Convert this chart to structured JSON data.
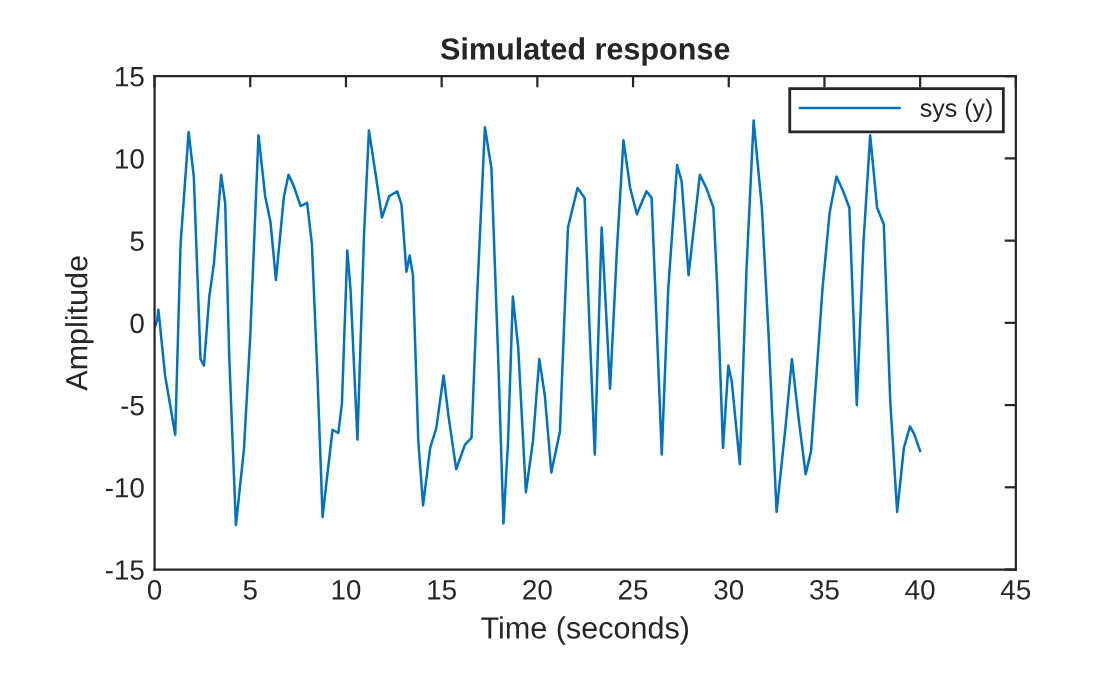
{
  "chart_data": {
    "type": "line",
    "title": "Simulated response",
    "xlabel": "Time (seconds)",
    "ylabel": "Amplitude",
    "xlim": [
      0,
      45
    ],
    "xticks": [
      0,
      5,
      10,
      15,
      20,
      25,
      30,
      35,
      40,
      45
    ],
    "ylim": [
      -15,
      15
    ],
    "yticks": [
      -15,
      -10,
      -5,
      0,
      5,
      10,
      15
    ],
    "grid": false,
    "legend": "top right",
    "marker": "none",
    "line_style": "solid",
    "series": [
      {
        "name": "sys (y)",
        "color": "#0072bd",
        "x": [
          0,
          0.14,
          0.2,
          0.55,
          1.08,
          1.36,
          1.78,
          2.05,
          2.4,
          2.58,
          2.86,
          3.1,
          3.48,
          3.69,
          3.9,
          4.25,
          4.67,
          5.0,
          5.43,
          5.78,
          6.06,
          6.34,
          6.76,
          7.0,
          7.28,
          7.63,
          7.97,
          8.22,
          8.5,
          8.78,
          9.02,
          9.3,
          9.6,
          9.79,
          10.07,
          10.24,
          10.6,
          10.94,
          11.2,
          11.57,
          11.88,
          12.26,
          12.68,
          12.9,
          13.16,
          13.33,
          13.5,
          13.78,
          14.03,
          14.4,
          14.72,
          15.1,
          15.35,
          15.76,
          16.22,
          16.56,
          16.84,
          17.26,
          17.6,
          17.95,
          18.23,
          18.47,
          18.72,
          19.0,
          19.4,
          19.77,
          20.1,
          20.39,
          20.73,
          21.18,
          21.6,
          22.1,
          22.47,
          22.74,
          23.0,
          23.36,
          23.8,
          24.16,
          24.5,
          24.85,
          25.2,
          25.7,
          25.97,
          26.2,
          26.5,
          26.84,
          27.3,
          27.54,
          27.9,
          28.49,
          28.83,
          29.2,
          29.4,
          29.7,
          29.98,
          30.16,
          30.58,
          30.93,
          31.3,
          31.73,
          32.08,
          32.5,
          32.96,
          33.3,
          33.67,
          34.02,
          34.3,
          34.58,
          34.9,
          35.27,
          35.63,
          35.98,
          36.3,
          36.69,
          37.04,
          37.39,
          37.75,
          38.1,
          38.44,
          38.8,
          39.15,
          39.47,
          39.7,
          40.0
        ],
        "values": [
          -0.3,
          0.2,
          0.8,
          -3.2,
          -6.8,
          4.8,
          11.6,
          8.9,
          -2.2,
          -2.6,
          1.6,
          3.6,
          9.0,
          7.3,
          -2,
          -12.3,
          -7.7,
          -0.8,
          11.4,
          7.7,
          6.1,
          2.6,
          7.7,
          9.0,
          8.3,
          7.1,
          7.3,
          4.8,
          -2.9,
          -11.8,
          -9.3,
          -6.5,
          -6.7,
          -4.9,
          4.4,
          2.0,
          -7.1,
          5.2,
          11.7,
          8.9,
          6.4,
          7.7,
          8.0,
          7.2,
          3.1,
          4.1,
          2.9,
          -7.2,
          -11.1,
          -7.6,
          -6.4,
          -3.2,
          -5.6,
          -8.9,
          -7.4,
          -7.0,
          1.3,
          11.9,
          9.4,
          -2.0,
          -12.2,
          -7.2,
          1.6,
          -1.5,
          -10.3,
          -7.2,
          -2.2,
          -4.4,
          -9.1,
          -6.6,
          5.8,
          8.2,
          7.6,
          -0.7,
          -8.0,
          5.8,
          -4.0,
          4.5,
          11.1,
          8.2,
          6.6,
          8.0,
          7.6,
          0.9,
          -8.0,
          2.1,
          9.6,
          8.6,
          2.9,
          9.0,
          8.2,
          7.0,
          2.1,
          -7.6,
          -2.6,
          -3.6,
          -8.6,
          3.3,
          12.3,
          7.0,
          -0.7,
          -11.5,
          -6.4,
          -2.2,
          -6.0,
          -9.2,
          -7.8,
          -3.2,
          2.1,
          6.7,
          8.9,
          8.0,
          7.0,
          -5.0,
          4.9,
          11.4,
          7.0,
          6.0,
          -4.8,
          -11.5,
          -7.6,
          -6.3,
          -6.8,
          -7.8
        ]
      }
    ]
  }
}
